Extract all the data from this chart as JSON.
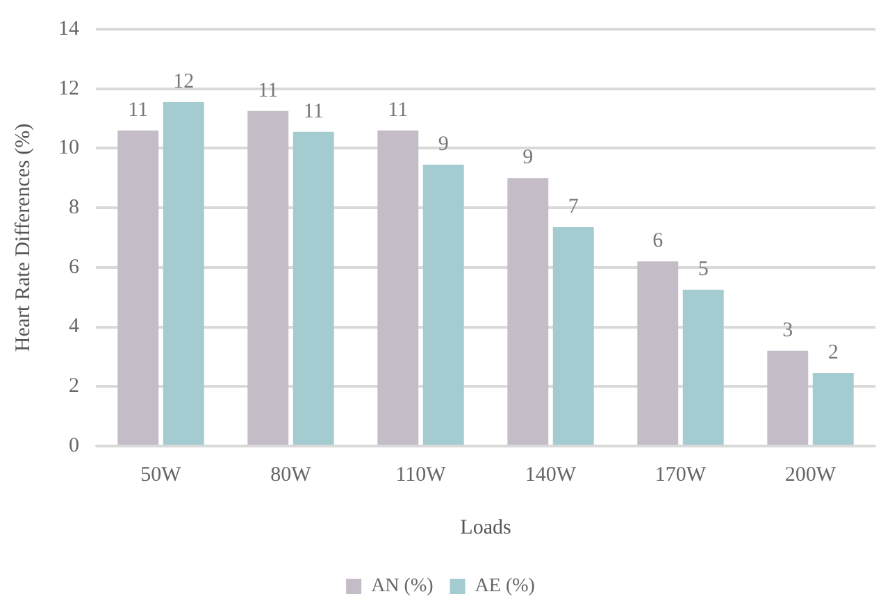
{
  "chart_data": {
    "type": "bar",
    "xlabel": "Loads",
    "ylabel": "Heart Rate Differences (%)",
    "categories": [
      "50W",
      "80W",
      "110W",
      "140W",
      "170W",
      "200W"
    ],
    "series": [
      {
        "name": "AN (%)",
        "color": "#c4bcc7",
        "values": [
          10.6,
          11.25,
          10.6,
          9.0,
          6.2,
          3.2
        ],
        "value_labels": [
          "11",
          "11",
          "11",
          "9",
          "6",
          "3"
        ]
      },
      {
        "name": "AE (%)",
        "color": "#a3cbd0",
        "values": [
          11.55,
          10.55,
          9.45,
          7.35,
          5.25,
          2.45
        ],
        "value_labels": [
          "12",
          "11",
          "9",
          "7",
          "5",
          "2"
        ]
      }
    ],
    "ylim": [
      0,
      14
    ],
    "yticks": [
      0,
      2,
      4,
      6,
      8,
      10,
      12,
      14
    ],
    "grid": "y",
    "legend": "bottom"
  }
}
